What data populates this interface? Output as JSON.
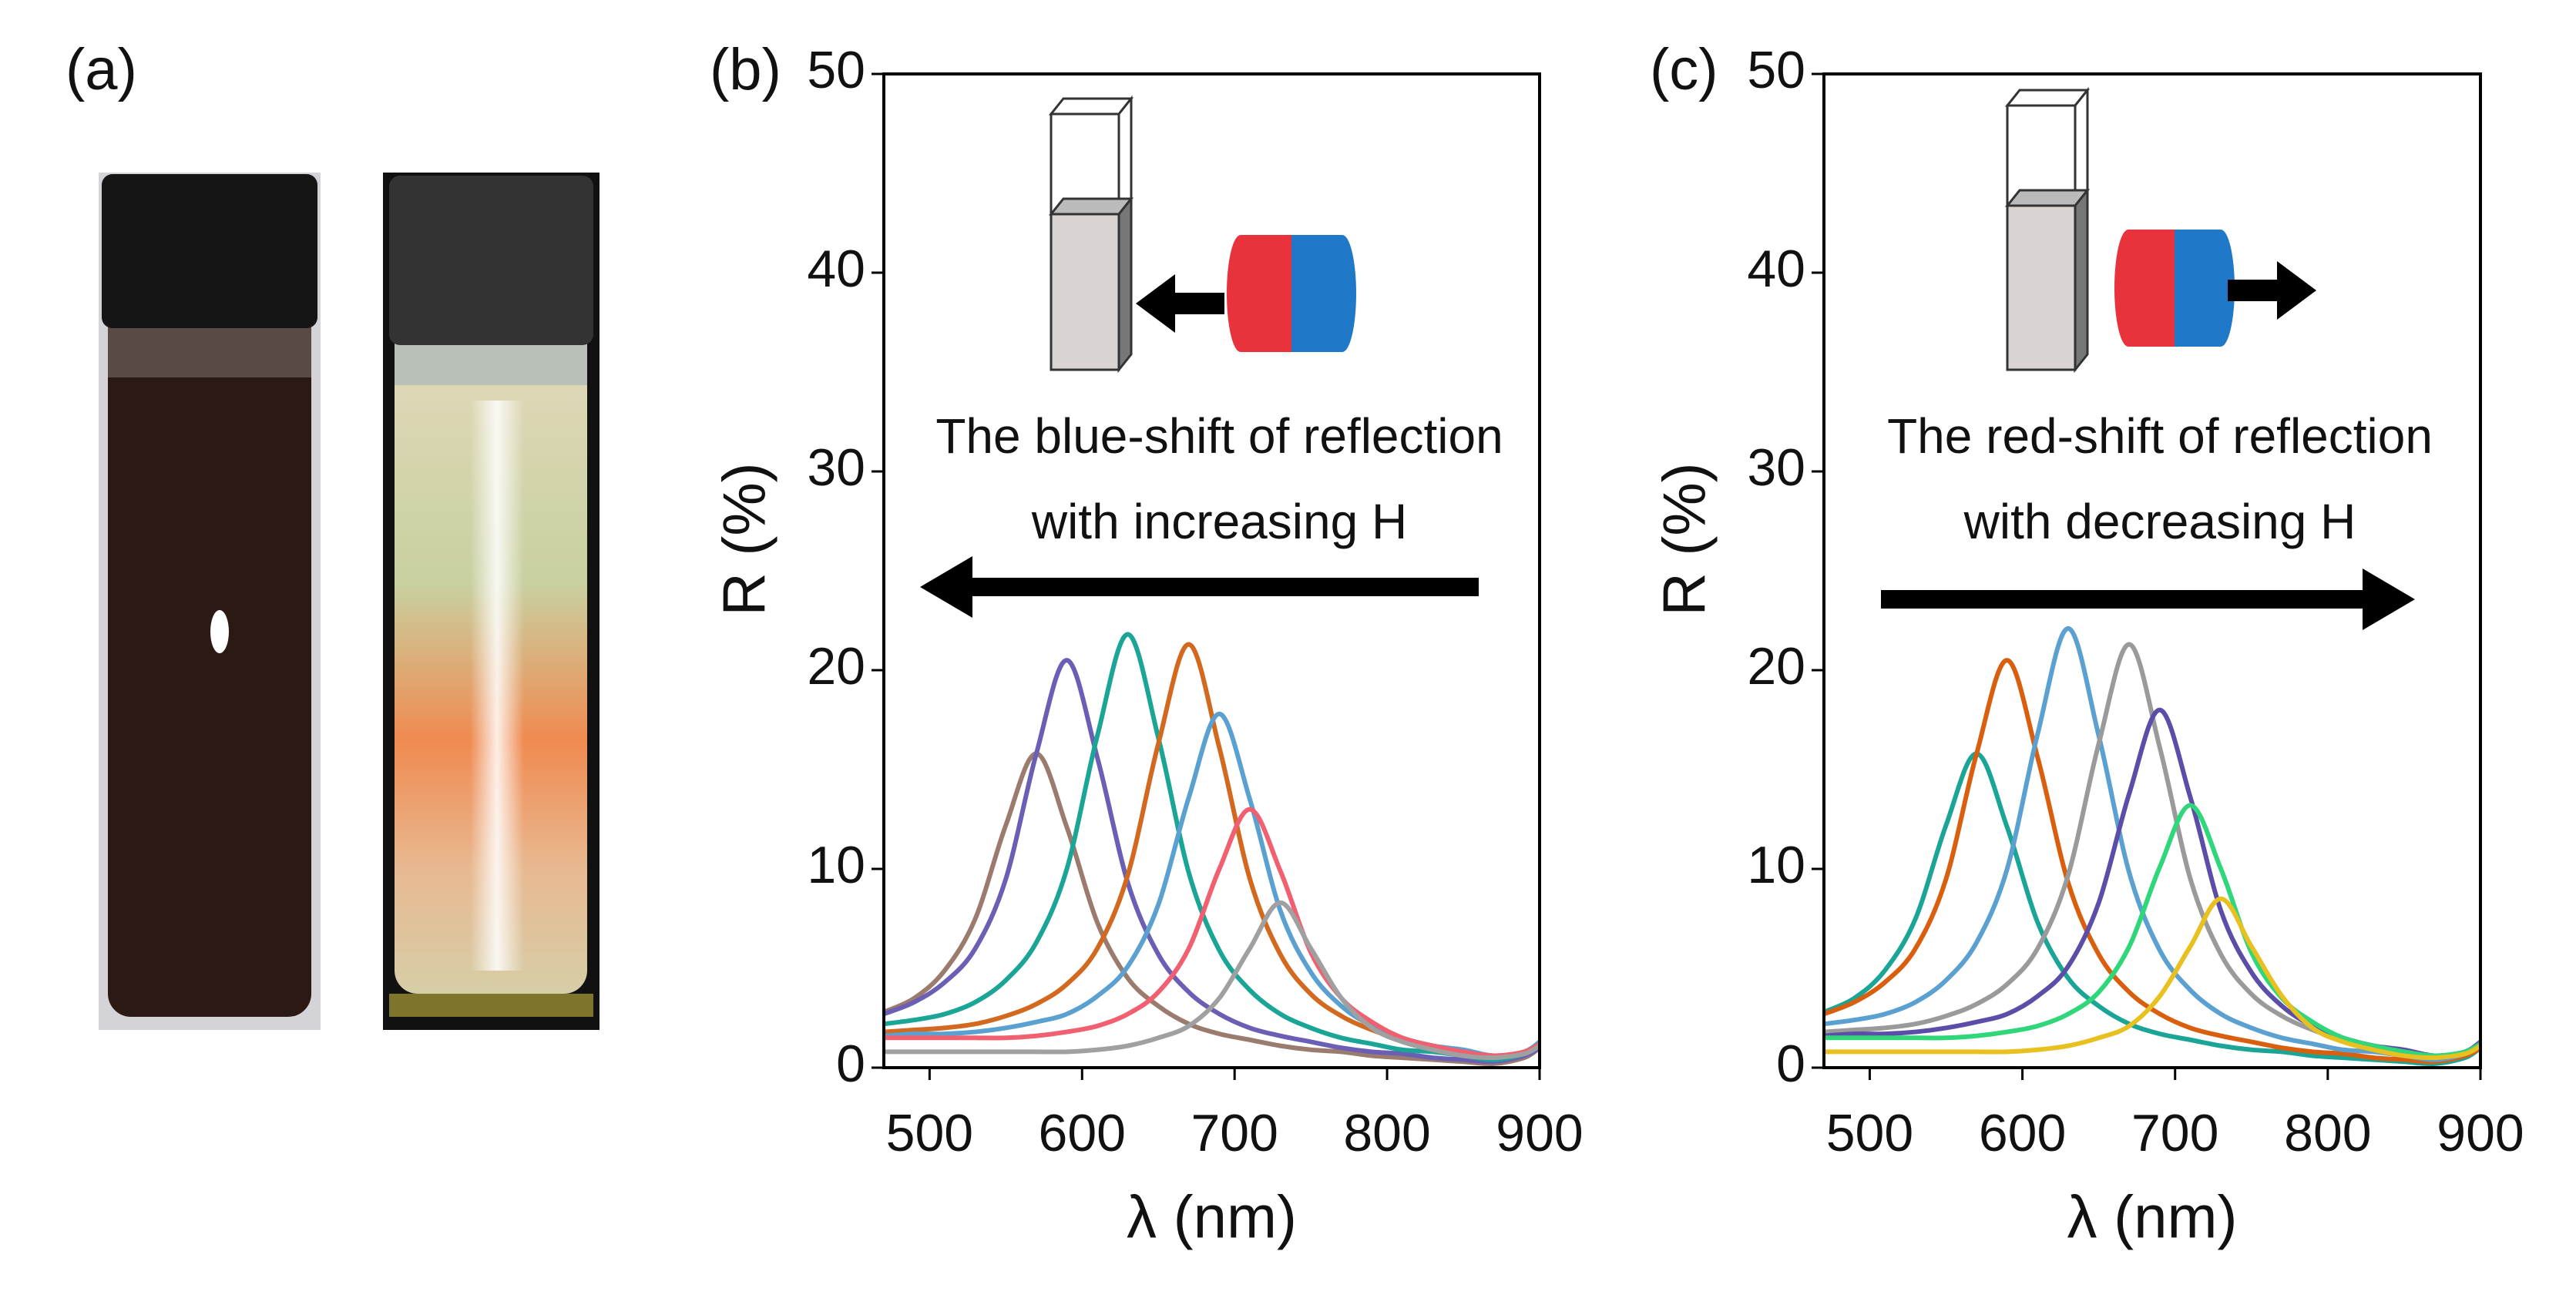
{
  "photo": {
    "label": "(a)"
  },
  "chart_data": [
    {
      "type": "line",
      "panel_label": "(b)",
      "xlabel": "λ (nm)",
      "ylabel": "R (%)",
      "annotations": [
        "The blue-shift of reflection",
        "with increasing H"
      ],
      "xlim": [
        470,
        900
      ],
      "ylim": [
        0,
        50
      ],
      "xticks": [
        500,
        600,
        700,
        800,
        900
      ],
      "yticks": [
        0,
        10,
        20,
        30,
        40,
        50
      ],
      "x": [
        470,
        490,
        510,
        530,
        550,
        570,
        590,
        610,
        630,
        650,
        670,
        690,
        710,
        730,
        750,
        770,
        790,
        810,
        830,
        850,
        870,
        890,
        900
      ],
      "series": [
        {
          "color": "#9b7b6e",
          "values": [
            2.8,
            3.5,
            4.9,
            7.5,
            12.2,
            15.8,
            12.1,
            7.3,
            4.5,
            3.1,
            2.2,
            1.7,
            1.4,
            1.1,
            0.9,
            0.8,
            0.6,
            0.5,
            0.4,
            0.3,
            0.2,
            0.5,
            1.0
          ]
        },
        {
          "color": "#6a5fb5",
          "values": [
            2.7,
            3.3,
            4.3,
            6.0,
            9.5,
            15.8,
            20.5,
            15.6,
            9.3,
            5.7,
            3.8,
            2.7,
            2.0,
            1.6,
            1.3,
            1.0,
            0.8,
            0.7,
            0.5,
            0.4,
            0.3,
            0.6,
            1.0
          ]
        },
        {
          "color": "#1aa596",
          "values": [
            2.2,
            2.4,
            2.7,
            3.3,
            4.4,
            6.3,
            10.0,
            16.7,
            21.8,
            16.6,
            9.8,
            5.9,
            3.9,
            2.7,
            2.0,
            1.5,
            1.2,
            0.9,
            0.8,
            0.6,
            0.4,
            0.7,
            1.2
          ]
        },
        {
          "color": "#d2691e",
          "values": [
            1.8,
            1.9,
            2.0,
            2.2,
            2.6,
            3.2,
            4.2,
            6.0,
            9.7,
            16.3,
            21.3,
            16.1,
            9.5,
            5.7,
            3.7,
            2.6,
            1.9,
            1.4,
            1.1,
            0.8,
            0.6,
            0.8,
            1.3
          ]
        },
        {
          "color": "#5aa0d0",
          "values": [
            1.6,
            1.7,
            1.7,
            1.8,
            2.0,
            2.3,
            2.7,
            3.6,
            5.1,
            8.2,
            13.6,
            17.8,
            13.5,
            7.9,
            4.8,
            3.1,
            2.1,
            1.5,
            1.1,
            0.9,
            0.6,
            0.8,
            1.3
          ]
        },
        {
          "color": "#f06070",
          "values": [
            1.5,
            1.5,
            1.5,
            1.5,
            1.5,
            1.6,
            1.8,
            2.1,
            2.7,
            3.8,
            6.0,
            10.0,
            13.0,
            9.9,
            5.8,
            3.5,
            2.3,
            1.5,
            1.1,
            0.8,
            0.6,
            0.8,
            1.2
          ]
        },
        {
          "color": "#a0a0a0",
          "values": [
            0.8,
            0.8,
            0.8,
            0.8,
            0.8,
            0.8,
            0.8,
            0.9,
            1.1,
            1.5,
            2.1,
            3.5,
            6.0,
            8.3,
            6.0,
            3.5,
            2.0,
            1.3,
            0.9,
            0.6,
            0.5,
            0.7,
            1.1
          ]
        }
      ]
    },
    {
      "type": "line",
      "panel_label": "(c)",
      "xlabel": "λ (nm)",
      "ylabel": "R (%)",
      "annotations": [
        "The red-shift of reflection",
        "with decreasing H"
      ],
      "xlim": [
        470,
        900
      ],
      "ylim": [
        0,
        50
      ],
      "xticks": [
        500,
        600,
        700,
        800,
        900
      ],
      "yticks": [
        0,
        10,
        20,
        30,
        40,
        50
      ],
      "x": [
        470,
        490,
        510,
        530,
        550,
        570,
        590,
        610,
        630,
        650,
        670,
        690,
        710,
        730,
        750,
        770,
        790,
        810,
        830,
        850,
        870,
        890,
        900
      ],
      "series": [
        {
          "color": "#1aa596",
          "values": [
            2.8,
            3.5,
            4.9,
            7.5,
            12.2,
            15.8,
            12.1,
            7.3,
            4.5,
            3.1,
            2.2,
            1.7,
            1.4,
            1.1,
            0.9,
            0.8,
            0.6,
            0.5,
            0.4,
            0.3,
            0.2,
            0.5,
            1.0
          ]
        },
        {
          "color": "#d95f0e",
          "values": [
            2.7,
            3.3,
            4.3,
            6.0,
            9.5,
            15.8,
            20.5,
            15.6,
            9.3,
            5.7,
            3.8,
            2.7,
            2.0,
            1.6,
            1.3,
            1.0,
            0.8,
            0.7,
            0.5,
            0.4,
            0.3,
            0.6,
            1.0
          ]
        },
        {
          "color": "#5aa0d0",
          "values": [
            2.2,
            2.4,
            2.7,
            3.3,
            4.4,
            6.3,
            10.0,
            16.8,
            22.1,
            16.7,
            9.8,
            5.9,
            3.9,
            2.7,
            2.0,
            1.5,
            1.2,
            0.9,
            0.8,
            0.6,
            0.4,
            0.7,
            1.2
          ]
        },
        {
          "color": "#9a9a9a",
          "values": [
            1.8,
            1.9,
            2.0,
            2.2,
            2.6,
            3.2,
            4.2,
            6.0,
            9.7,
            16.3,
            21.3,
            16.1,
            9.5,
            5.7,
            3.7,
            2.6,
            1.9,
            1.4,
            1.1,
            0.8,
            0.6,
            0.8,
            1.3
          ]
        },
        {
          "color": "#5b4ea8",
          "values": [
            1.6,
            1.7,
            1.7,
            1.8,
            2.0,
            2.3,
            2.7,
            3.6,
            5.1,
            8.3,
            13.8,
            18.0,
            13.6,
            7.9,
            4.8,
            3.1,
            2.1,
            1.5,
            1.1,
            0.9,
            0.6,
            0.8,
            1.3
          ]
        },
        {
          "color": "#2fd67a",
          "values": [
            1.5,
            1.5,
            1.5,
            1.5,
            1.5,
            1.6,
            1.8,
            2.1,
            2.7,
            3.8,
            6.1,
            10.1,
            13.2,
            10.0,
            5.8,
            3.5,
            2.3,
            1.5,
            1.1,
            0.8,
            0.6,
            0.8,
            1.2
          ]
        },
        {
          "color": "#e8c020",
          "values": [
            0.8,
            0.8,
            0.8,
            0.8,
            0.8,
            0.8,
            0.8,
            0.9,
            1.1,
            1.5,
            2.1,
            3.6,
            6.1,
            8.5,
            6.1,
            3.6,
            2.0,
            1.3,
            0.9,
            0.6,
            0.5,
            0.7,
            1.1
          ]
        }
      ]
    }
  ]
}
